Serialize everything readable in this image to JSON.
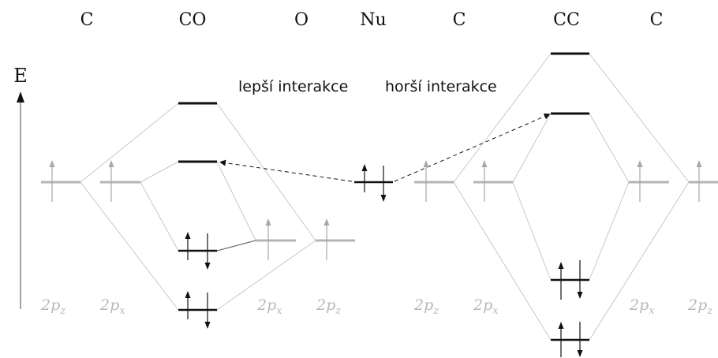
{
  "headers": {
    "c_left": "C",
    "co": "CO",
    "o": "O",
    "nu": "Nu",
    "c_mid": "C",
    "cc": "CC",
    "c_right": "C"
  },
  "energy_axis_label": "E",
  "annotations": {
    "better": "lepší interakce",
    "worse": "horší interakce"
  },
  "orbital_labels": {
    "z_base": "2p",
    "z_sub": "z",
    "x_base": "2p",
    "x_sub": "x"
  },
  "colors": {
    "line": "#111111",
    "faded_level": "#b4b4b4",
    "faded_arrow": "#a8a8a8",
    "connector": "#c8c8c8",
    "orbital_label": "#b8b8b8"
  }
}
